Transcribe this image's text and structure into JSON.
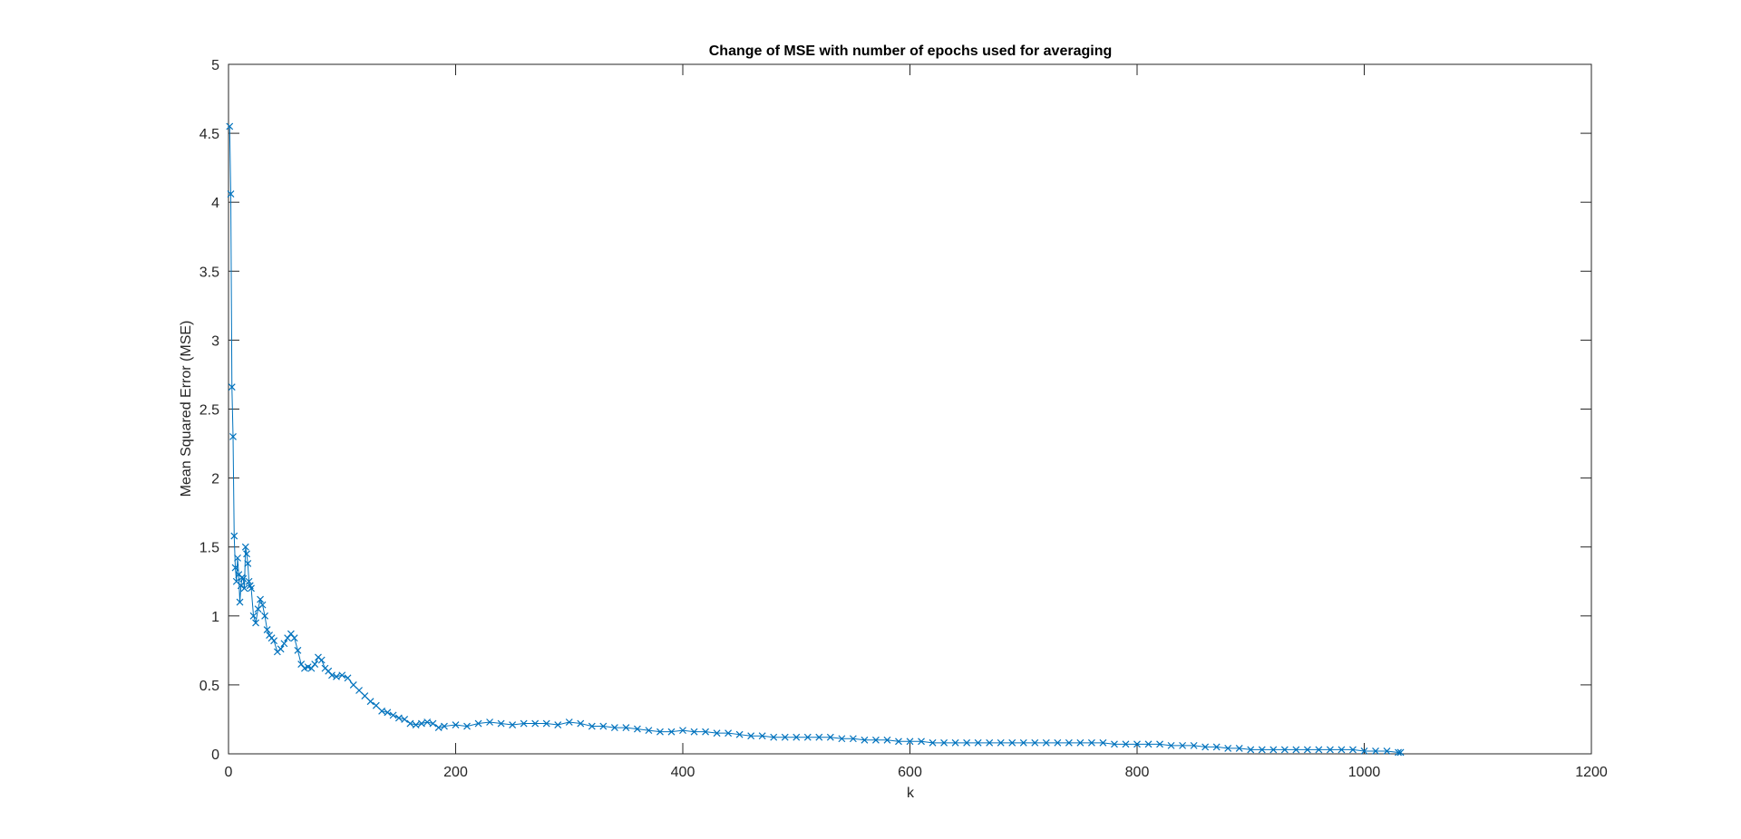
{
  "chart_data": {
    "type": "line",
    "title": "Change of MSE with number of epochs used for averaging",
    "xlabel": "k",
    "ylabel": "Mean Squared Error (MSE)",
    "xlim": [
      0,
      1200
    ],
    "ylim": [
      0,
      5
    ],
    "xticks": [
      "0",
      "200",
      "400",
      "600",
      "800",
      "1000",
      "1200"
    ],
    "yticks": [
      "0",
      "0.5",
      "1",
      "1.5",
      "2",
      "2.5",
      "3",
      "3.5",
      "4",
      "4.5",
      "5"
    ],
    "grid": false,
    "marker": "x",
    "color": "#0072BD",
    "series": [
      {
        "x": [
          1,
          2,
          3,
          4,
          5,
          6,
          7,
          8,
          9,
          10,
          11,
          12,
          13,
          14,
          15,
          16,
          17,
          18,
          19,
          20,
          22,
          24,
          26,
          28,
          30,
          32,
          34,
          36,
          38,
          40,
          43,
          46,
          49,
          52,
          55,
          58,
          61,
          64,
          67,
          70,
          73,
          76,
          79,
          82,
          85,
          88,
          91,
          95,
          100,
          105,
          110,
          115,
          120,
          125,
          130,
          135,
          140,
          145,
          150,
          155,
          160,
          165,
          170,
          175,
          180,
          185,
          190,
          200,
          210,
          220,
          230,
          240,
          250,
          260,
          270,
          280,
          290,
          300,
          310,
          320,
          330,
          340,
          350,
          360,
          370,
          380,
          390,
          400,
          410,
          420,
          430,
          440,
          450,
          460,
          470,
          480,
          490,
          500,
          510,
          520,
          530,
          540,
          550,
          560,
          570,
          580,
          590,
          600,
          610,
          620,
          630,
          640,
          650,
          660,
          670,
          680,
          690,
          700,
          710,
          720,
          730,
          740,
          750,
          760,
          770,
          780,
          790,
          800,
          810,
          820,
          830,
          840,
          850,
          860,
          870,
          880,
          890,
          900,
          910,
          920,
          930,
          940,
          950,
          960,
          970,
          980,
          990,
          1000,
          1010,
          1020,
          1030,
          1032
        ],
        "y": [
          4.55,
          4.06,
          2.66,
          2.3,
          1.58,
          1.35,
          1.25,
          1.42,
          1.3,
          1.1,
          1.22,
          1.28,
          1.27,
          1.2,
          1.5,
          1.45,
          1.38,
          1.25,
          1.22,
          1.2,
          1.0,
          0.95,
          1.05,
          1.12,
          1.08,
          1.0,
          0.9,
          0.86,
          0.84,
          0.82,
          0.74,
          0.76,
          0.8,
          0.84,
          0.87,
          0.84,
          0.75,
          0.65,
          0.62,
          0.63,
          0.62,
          0.65,
          0.7,
          0.68,
          0.62,
          0.6,
          0.57,
          0.56,
          0.57,
          0.55,
          0.5,
          0.46,
          0.42,
          0.38,
          0.35,
          0.31,
          0.3,
          0.28,
          0.26,
          0.25,
          0.22,
          0.21,
          0.22,
          0.23,
          0.22,
          0.19,
          0.2,
          0.21,
          0.2,
          0.22,
          0.23,
          0.22,
          0.21,
          0.22,
          0.22,
          0.22,
          0.21,
          0.23,
          0.22,
          0.2,
          0.2,
          0.19,
          0.19,
          0.18,
          0.17,
          0.16,
          0.16,
          0.17,
          0.16,
          0.16,
          0.15,
          0.15,
          0.14,
          0.13,
          0.13,
          0.12,
          0.12,
          0.12,
          0.12,
          0.12,
          0.12,
          0.11,
          0.11,
          0.1,
          0.1,
          0.1,
          0.09,
          0.09,
          0.09,
          0.08,
          0.08,
          0.08,
          0.08,
          0.08,
          0.08,
          0.08,
          0.08,
          0.08,
          0.08,
          0.08,
          0.08,
          0.08,
          0.08,
          0.08,
          0.08,
          0.07,
          0.07,
          0.07,
          0.07,
          0.07,
          0.06,
          0.06,
          0.06,
          0.05,
          0.05,
          0.04,
          0.04,
          0.03,
          0.03,
          0.03,
          0.03,
          0.03,
          0.03,
          0.03,
          0.03,
          0.03,
          0.03,
          0.02,
          0.02,
          0.02,
          0.01,
          0.01
        ]
      }
    ]
  }
}
